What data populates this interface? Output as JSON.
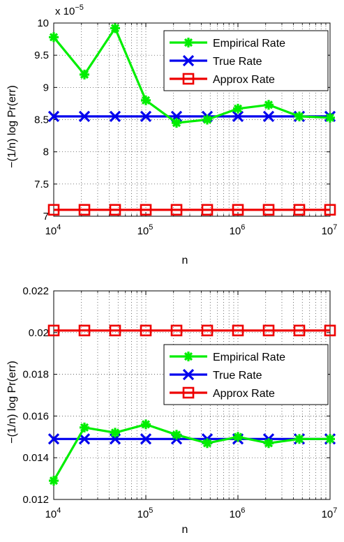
{
  "chart_data": [
    {
      "type": "line",
      "xscale": "log",
      "xlabel": "n",
      "ylabel": "−(1/n) log Pr(err)",
      "xlim": [
        10000,
        10000000
      ],
      "ylim": [
        7,
        10
      ],
      "y_multiplier_label": "x 10",
      "y_multiplier_exp": "−5",
      "y_ticks": [
        "7",
        "7.5",
        "8",
        "8.5",
        "9",
        "9.5",
        "10"
      ],
      "x_tick_exponents": [
        "4",
        "5",
        "6",
        "7"
      ],
      "x_tick_base": "10",
      "grid": "dotted",
      "legend": "top-right",
      "series": [
        {
          "name": "Empirical Rate",
          "color": "#00ee00",
          "marker": "asterisk",
          "x": [
            10000,
            21544,
            46416,
            100000,
            215443,
            464159,
            1000000,
            2154435,
            4641589,
            10000000
          ],
          "y": [
            9.78,
            9.2,
            9.92,
            8.8,
            8.45,
            8.5,
            8.67,
            8.73,
            8.55,
            8.53
          ]
        },
        {
          "name": "True Rate",
          "color": "#0000ee",
          "marker": "x",
          "x": [
            10000,
            21544,
            46416,
            100000,
            215443,
            464159,
            1000000,
            2154435,
            4641589,
            10000000
          ],
          "y": [
            8.55,
            8.55,
            8.55,
            8.55,
            8.55,
            8.55,
            8.55,
            8.55,
            8.55,
            8.55
          ]
        },
        {
          "name": "Approx Rate",
          "color": "#ee0000",
          "marker": "square",
          "x": [
            10000,
            21544,
            46416,
            100000,
            215443,
            464159,
            1000000,
            2154435,
            4641589,
            10000000
          ],
          "y": [
            7.1,
            7.1,
            7.1,
            7.1,
            7.1,
            7.1,
            7.1,
            7.1,
            7.1,
            7.1
          ]
        }
      ]
    },
    {
      "type": "line",
      "xscale": "log",
      "xlabel": "n",
      "ylabel": "−(1/n) log Pr(err)",
      "xlim": [
        10000,
        10000000
      ],
      "ylim": [
        0.012,
        0.022
      ],
      "y_ticks": [
        "0.012",
        "0.014",
        "0.016",
        "0.018",
        "0.02",
        "0.022"
      ],
      "x_tick_exponents": [
        "4",
        "5",
        "6",
        "7"
      ],
      "x_tick_base": "10",
      "grid": "dotted",
      "legend": "middle-right",
      "series": [
        {
          "name": "Empirical Rate",
          "color": "#00ee00",
          "marker": "asterisk",
          "x": [
            10000,
            21544,
            46416,
            100000,
            215443,
            464159,
            1000000,
            2154435,
            4641589,
            10000000
          ],
          "y": [
            0.0129,
            0.01545,
            0.0152,
            0.0156,
            0.0151,
            0.0147,
            0.015,
            0.0147,
            0.0149,
            0.0149
          ]
        },
        {
          "name": "True Rate",
          "color": "#0000ee",
          "marker": "x",
          "x": [
            10000,
            21544,
            46416,
            100000,
            215443,
            464159,
            1000000,
            2154435,
            4641589,
            10000000
          ],
          "y": [
            0.0149,
            0.0149,
            0.0149,
            0.0149,
            0.0149,
            0.0149,
            0.0149,
            0.0149,
            0.0149,
            0.0149
          ]
        },
        {
          "name": "Approx Rate",
          "color": "#ee0000",
          "marker": "square",
          "x": [
            10000,
            21544,
            46416,
            100000,
            215443,
            464159,
            1000000,
            2154435,
            4641589,
            10000000
          ],
          "y": [
            0.0201,
            0.0201,
            0.0201,
            0.0201,
            0.0201,
            0.0201,
            0.0201,
            0.0201,
            0.0201,
            0.0201
          ]
        }
      ]
    }
  ]
}
